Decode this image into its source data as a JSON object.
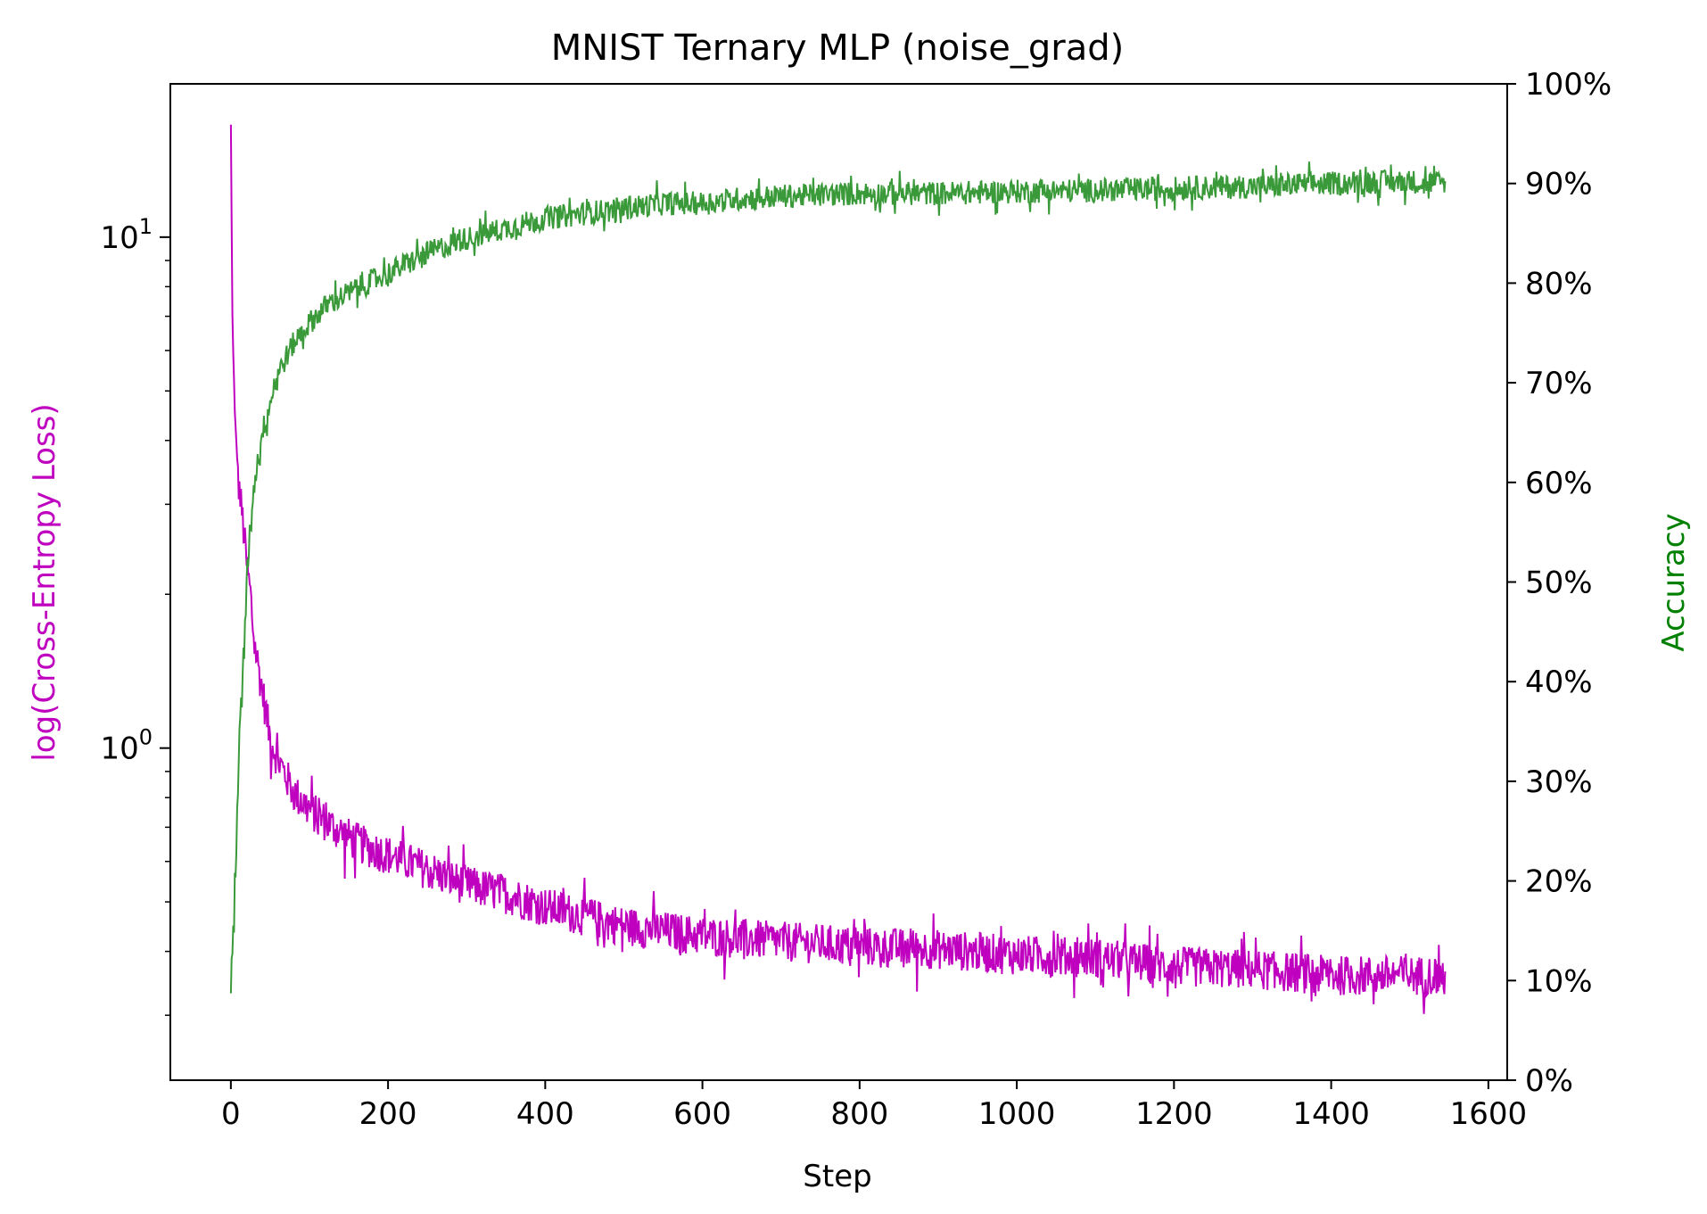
{
  "chart_data": {
    "type": "line",
    "title": "MNIST Ternary MLP (noise_grad)",
    "xlabel": "Step",
    "ylabel_left": "log(Cross-Entropy Loss)",
    "ylabel_right": "Accuracy",
    "xlim": [
      -77,
      1624
    ],
    "ylim_left_log10": [
      -0.65,
      1.3
    ],
    "ylim_right": [
      0,
      1
    ],
    "x_scale": "linear",
    "y_left_scale": "log",
    "grid": false,
    "x_ticks": [
      0,
      200,
      400,
      600,
      800,
      1000,
      1200,
      1400,
      1600
    ],
    "x_tick_labels": [
      "0",
      "200",
      "400",
      "600",
      "800",
      "1000",
      "1200",
      "1400",
      "1600"
    ],
    "y_left_ticks": [
      {
        "value": 10,
        "base": "10",
        "exp": "1"
      },
      {
        "value": 1,
        "base": "10",
        "exp": "0"
      }
    ],
    "y_right_ticks": [
      0,
      0.1,
      0.2,
      0.3,
      0.4,
      0.5,
      0.6,
      0.7,
      0.8,
      0.9,
      1.0
    ],
    "y_right_tick_labels": [
      "0%",
      "10%",
      "20%",
      "30%",
      "40%",
      "50%",
      "60%",
      "70%",
      "80%",
      "90%",
      "100%"
    ],
    "series": [
      {
        "role": "loss",
        "axis": "left",
        "color": "#bf00bf",
        "x": [
          0,
          2,
          5,
          10,
          15,
          20,
          25,
          30,
          40,
          50,
          60,
          80,
          100,
          125,
          150,
          175,
          200,
          250,
          300,
          350,
          400,
          450,
          500,
          550,
          600,
          700,
          800,
          900,
          1000,
          1100,
          1200,
          1300,
          1400,
          1500,
          1545
        ],
        "y": [
          16.5,
          7.0,
          4.5,
          3.3,
          2.8,
          2.3,
          2.0,
          1.6,
          1.3,
          1.05,
          0.95,
          0.82,
          0.76,
          0.71,
          0.67,
          0.64,
          0.62,
          0.58,
          0.54,
          0.52,
          0.49,
          0.47,
          0.45,
          0.44,
          0.43,
          0.42,
          0.41,
          0.405,
          0.395,
          0.39,
          0.375,
          0.37,
          0.36,
          0.36,
          0.36
        ],
        "noise_fraction": 0.09
      },
      {
        "role": "accuracy",
        "axis": "right",
        "color": "#3a9a3a",
        "x": [
          0,
          3,
          6,
          10,
          15,
          20,
          25,
          30,
          40,
          50,
          60,
          80,
          100,
          125,
          150,
          175,
          200,
          250,
          300,
          350,
          400,
          450,
          500,
          550,
          600,
          650,
          700,
          800,
          900,
          1000,
          1100,
          1200,
          1300,
          1400,
          1500,
          1545
        ],
        "y": [
          0.08,
          0.15,
          0.22,
          0.32,
          0.4,
          0.5,
          0.56,
          0.6,
          0.65,
          0.68,
          0.71,
          0.74,
          0.76,
          0.78,
          0.79,
          0.8,
          0.81,
          0.83,
          0.845,
          0.855,
          0.865,
          0.87,
          0.875,
          0.88,
          0.88,
          0.885,
          0.887,
          0.89,
          0.89,
          0.892,
          0.893,
          0.895,
          0.897,
          0.9,
          0.902,
          0.9
        ],
        "noise_amplitude": 0.012
      }
    ]
  }
}
